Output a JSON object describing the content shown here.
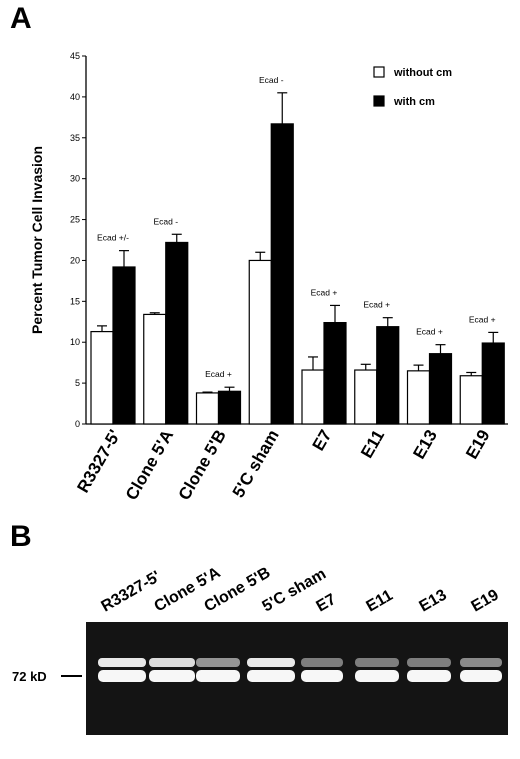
{
  "panel_a": {
    "letter": "A"
  },
  "panel_b": {
    "letter": "B",
    "marker_label": "72 kD",
    "lanes": [
      "R3327-5'",
      "Clone 5'A",
      "Clone 5'B",
      "5'C sham",
      "E7",
      "E11",
      "E13",
      "E19"
    ]
  },
  "legend": {
    "without": "without cm",
    "with": "with cm",
    "position": "top-right"
  },
  "colors": {
    "without_fill": "#ffffff",
    "with_fill": "#000000",
    "blot_bg": "#141414",
    "band": "#ffffff"
  },
  "chart_data": {
    "type": "bar",
    "ylabel": "Percent Tumor Cell Invasion",
    "xlabel": "",
    "ylim": [
      0,
      45
    ],
    "yticks": [
      0,
      5,
      10,
      15,
      20,
      25,
      30,
      35,
      40,
      45
    ],
    "grid": false,
    "categories": [
      "R3327-5'",
      "Clone 5'A",
      "Clone 5'B",
      "5'C sham",
      "E7",
      "E11",
      "E13",
      "E19"
    ],
    "series": [
      {
        "name": "without cm",
        "values": [
          11.3,
          13.4,
          3.8,
          20.0,
          6.6,
          6.6,
          6.5,
          5.9
        ],
        "errors": [
          0.7,
          0.2,
          0.1,
          1.0,
          1.6,
          0.7,
          0.7,
          0.4
        ]
      },
      {
        "name": "with cm",
        "values": [
          19.2,
          22.2,
          4.0,
          36.7,
          12.4,
          11.9,
          8.6,
          9.9
        ],
        "errors": [
          2.0,
          1.0,
          0.5,
          3.8,
          2.1,
          1.1,
          1.1,
          1.3
        ]
      }
    ],
    "annotations": [
      "Ecad  +/-",
      "Ecad -",
      "Ecad +",
      "Ecad -",
      "Ecad +",
      "Ecad +",
      "Ecad +",
      "Ecad +"
    ]
  }
}
